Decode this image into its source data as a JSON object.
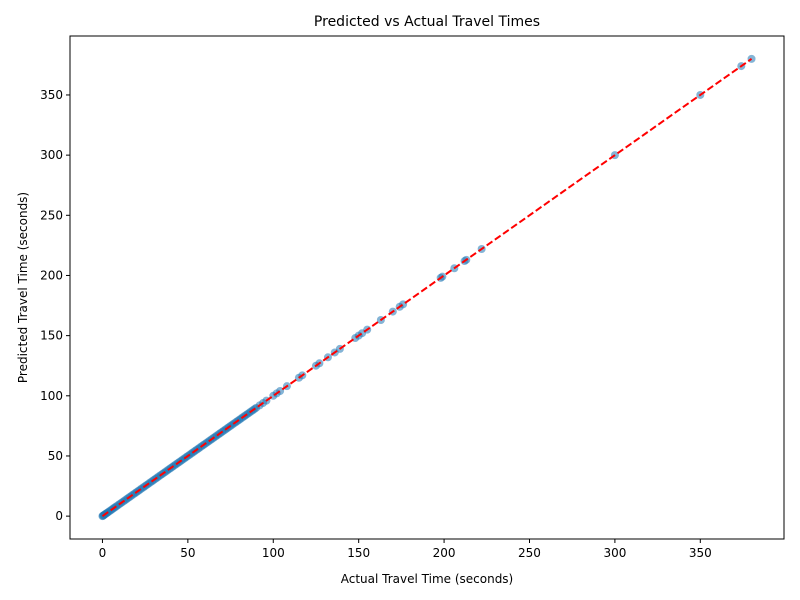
{
  "chart_data": {
    "type": "scatter",
    "title": "Predicted vs Actual Travel Times",
    "xlabel": "Actual Travel Time (seconds)",
    "ylabel": "Predicted Travel Time (seconds)",
    "xlim": [
      -19,
      399
    ],
    "ylim": [
      -19,
      399
    ],
    "xticks": [
      0,
      50,
      100,
      150,
      200,
      250,
      300,
      350
    ],
    "yticks": [
      0,
      50,
      100,
      150,
      200,
      250,
      300,
      350
    ],
    "grid": false,
    "legend": "none",
    "colors": {
      "points": "#1f77b4",
      "reference_line": "#ff0000"
    },
    "reference_line": {
      "style": "dashed",
      "from": [
        0,
        0
      ],
      "to": [
        380,
        380
      ]
    },
    "points": {
      "x": [
        0,
        0.3,
        0.6,
        1,
        1.5,
        2,
        2.6,
        3.2,
        4,
        4.8,
        5.6,
        6.4,
        7.2,
        8,
        9,
        10,
        11,
        12,
        13,
        14,
        15,
        16,
        17,
        18,
        19,
        20,
        21,
        22,
        23,
        24,
        25,
        26,
        27,
        28,
        29,
        30,
        31,
        32,
        33,
        34,
        35,
        36,
        37,
        38,
        39,
        40,
        41,
        42,
        43,
        44,
        45,
        46,
        47,
        48,
        49,
        50,
        51,
        52,
        53,
        54,
        55,
        56,
        57,
        58,
        59,
        60,
        61,
        62,
        63,
        64,
        65,
        66,
        67,
        68,
        69,
        70,
        71,
        72,
        73,
        74,
        75,
        76,
        77,
        78,
        79,
        80,
        81,
        82,
        83,
        84,
        85,
        86,
        87,
        88,
        89,
        90,
        92,
        94,
        96,
        100,
        102,
        104,
        108,
        115,
        117,
        125,
        127,
        132,
        136,
        139,
        148,
        150,
        152,
        155,
        163,
        170,
        174,
        176,
        198,
        199,
        206,
        212,
        213,
        222,
        300,
        350,
        374,
        380
      ],
      "y": [
        0,
        0.3,
        0.6,
        1,
        1.5,
        2,
        2.6,
        3.2,
        4,
        4.8,
        5.6,
        6.4,
        7.2,
        8,
        9,
        10,
        11,
        12,
        13,
        14,
        15,
        16,
        17,
        18,
        19,
        20,
        21,
        22,
        23,
        24,
        25,
        26,
        27,
        28,
        29,
        30,
        31,
        32,
        33,
        34,
        35,
        36,
        37,
        38,
        39,
        40,
        41,
        42,
        43,
        44,
        45,
        46,
        47,
        48,
        49,
        50,
        51,
        52,
        53,
        54,
        55,
        56,
        57,
        58,
        59,
        60,
        61,
        62,
        63,
        64,
        65,
        66,
        67,
        68,
        69,
        70,
        71,
        72,
        73,
        74,
        75,
        76,
        77,
        78,
        79,
        80,
        81,
        82,
        83,
        84,
        85,
        86,
        87,
        88,
        89,
        90,
        92,
        94,
        96,
        100,
        102,
        104,
        108,
        115,
        117,
        125,
        127,
        132,
        136,
        139,
        148,
        150,
        152,
        155,
        163,
        170,
        174,
        176,
        198,
        199,
        206,
        212,
        213,
        222,
        300,
        350,
        374,
        380
      ]
    }
  }
}
